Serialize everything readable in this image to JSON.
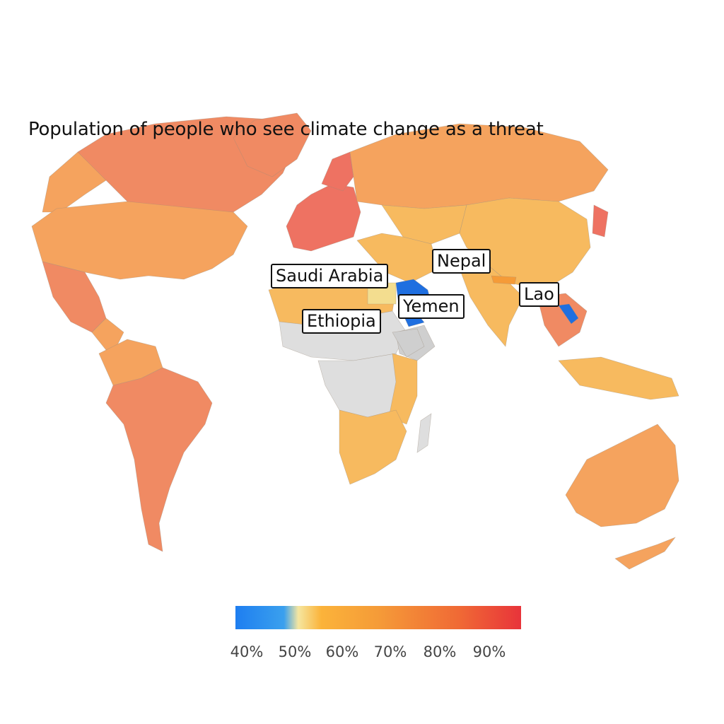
{
  "title": "Population of people who see climate change as a threat",
  "callouts": {
    "saudi_arabia": "Saudi Arabia",
    "nepal": "Nepal",
    "lao": "Lao",
    "yemen": "Yemen",
    "ethiopia": "Ethiopia"
  },
  "legend": {
    "ticks": [
      "40%",
      "50%",
      "60%",
      "70%",
      "80%",
      "90%"
    ],
    "colors": [
      "#1e7ef0",
      "#3aa0ee",
      "#f5e6a0",
      "#fbb33a",
      "#f59b38",
      "#f06a35",
      "#e8343a"
    ]
  },
  "palette": {
    "no_data": "#dedede",
    "above_90": "#ee7262",
    "range_80_90": "#f08a63",
    "range_70_80": "#f5a35e",
    "range_60_70": "#f7ba5f",
    "range_50_60": "#f3dd8f",
    "below_50": "#1f6fe0"
  }
}
